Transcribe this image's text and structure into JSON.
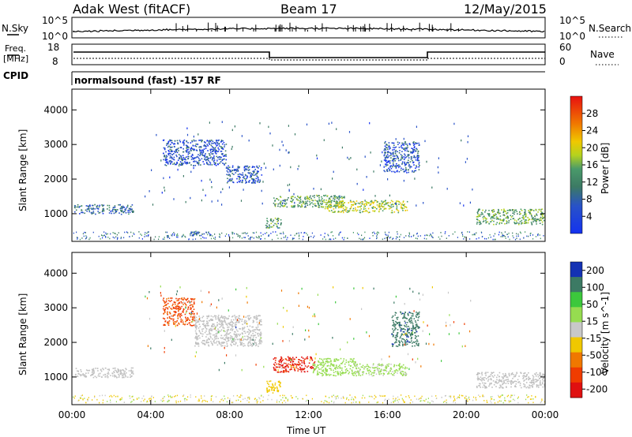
{
  "header": {
    "station": "Adak West (fitACF)",
    "beam": "Beam 17",
    "date": "12/May/2015"
  },
  "noise_panel": {
    "left_label": "N.Sky",
    "left_ticks": [
      "10^5",
      "10^0"
    ],
    "right_label": "N.Search",
    "right_ticks": [
      "10^5",
      "10^0"
    ]
  },
  "freq_panel": {
    "left_label_1": "Freq.",
    "left_label_2": "[MHz]",
    "left_ticks": [
      "18",
      "8"
    ],
    "right_label": "Nave",
    "right_ticks": [
      "60",
      "0"
    ]
  },
  "cpid": {
    "label": "CPID",
    "mode": "normalsound (fast) -157 RF"
  },
  "colors": {
    "power_scale": [
      "#1432f0",
      "#2852c8",
      "#3c7a64",
      "#4a9a6a",
      "#b4d21e",
      "#f0c800",
      "#f07800",
      "#e81010"
    ],
    "velocity_scale": [
      "#1432b4",
      "#3c7a64",
      "#3cc83c",
      "#96dc50",
      "#c8c8c8",
      "#f0c800",
      "#f07800",
      "#f03c00",
      "#e01010"
    ],
    "ground_scatter": "#c0c0c0"
  },
  "chart_data": [
    {
      "type": "heatmap",
      "title": "Power",
      "ylabel": "Slant Range [km]",
      "ylim": [
        200,
        4600
      ],
      "yticks": [
        "1000",
        "2000",
        "3000",
        "4000"
      ],
      "xlim": [
        "00:00",
        "24:00"
      ],
      "colorbar": {
        "label": "Power [dB]",
        "ticks": [
          "4",
          "8",
          "12",
          "16",
          "20",
          "24",
          "28"
        ],
        "range": [
          0,
          32
        ]
      },
      "regions": [
        {
          "x": [
            0.1,
            3.1
          ],
          "y": [
            1000,
            1280
          ],
          "value": 8
        },
        {
          "x": [
            4.6,
            7.8
          ],
          "y": [
            2400,
            3150
          ],
          "value": 6
        },
        {
          "x": [
            7.8,
            9.6
          ],
          "y": [
            1900,
            2400
          ],
          "value": 6
        },
        {
          "x": [
            9.8,
            10.6
          ],
          "y": [
            600,
            900
          ],
          "value": 12
        },
        {
          "x": [
            10.2,
            13.8
          ],
          "y": [
            1200,
            1550
          ],
          "value": 14
        },
        {
          "x": [
            12.8,
            17.0
          ],
          "y": [
            1050,
            1400
          ],
          "value": 18
        },
        {
          "x": [
            20.5,
            24.0
          ],
          "y": [
            700,
            1150
          ],
          "value": 14
        },
        {
          "x": [
            6.0,
            7.0
          ],
          "y": [
            380,
            520
          ],
          "value": 8
        },
        {
          "x": [
            15.8,
            17.6
          ],
          "y": [
            2200,
            3100
          ],
          "value": 6
        }
      ]
    },
    {
      "type": "heatmap",
      "title": "Velocity",
      "ylabel": "Slant Range [km]",
      "ylim": [
        200,
        4600
      ],
      "yticks": [
        "1000",
        "2000",
        "3000",
        "4000"
      ],
      "xlim": [
        "00:00",
        "24:00"
      ],
      "xlabel": "Time UT",
      "xticks": [
        "00:00",
        "04:00",
        "08:00",
        "12:00",
        "16:00",
        "20:00",
        "00:00"
      ],
      "colorbar": {
        "label": "Velocity [m s^-1]",
        "ticks": [
          "200",
          "100",
          "50",
          "15",
          "-15",
          "-50",
          "-100",
          "-200"
        ],
        "range": [
          -250,
          250
        ]
      },
      "regions": [
        {
          "x": [
            0.1,
            3.1
          ],
          "y": [
            1000,
            1280
          ],
          "value": "ground"
        },
        {
          "x": [
            4.6,
            6.2
          ],
          "y": [
            2500,
            3300
          ],
          "value": -150
        },
        {
          "x": [
            6.2,
            9.6
          ],
          "y": [
            1900,
            2800
          ],
          "value": "ground"
        },
        {
          "x": [
            9.8,
            10.6
          ],
          "y": [
            550,
            900
          ],
          "value": -60
        },
        {
          "x": [
            10.2,
            12.3
          ],
          "y": [
            1150,
            1600
          ],
          "value": -200
        },
        {
          "x": [
            12.2,
            14.4
          ],
          "y": [
            1050,
            1550
          ],
          "value": 60
        },
        {
          "x": [
            14.4,
            17.0
          ],
          "y": [
            1050,
            1400
          ],
          "value": 40
        },
        {
          "x": [
            16.2,
            17.6
          ],
          "y": [
            1900,
            2900
          ],
          "value": 180
        },
        {
          "x": [
            20.5,
            24.0
          ],
          "y": [
            700,
            1150
          ],
          "value": "ground"
        }
      ]
    }
  ]
}
